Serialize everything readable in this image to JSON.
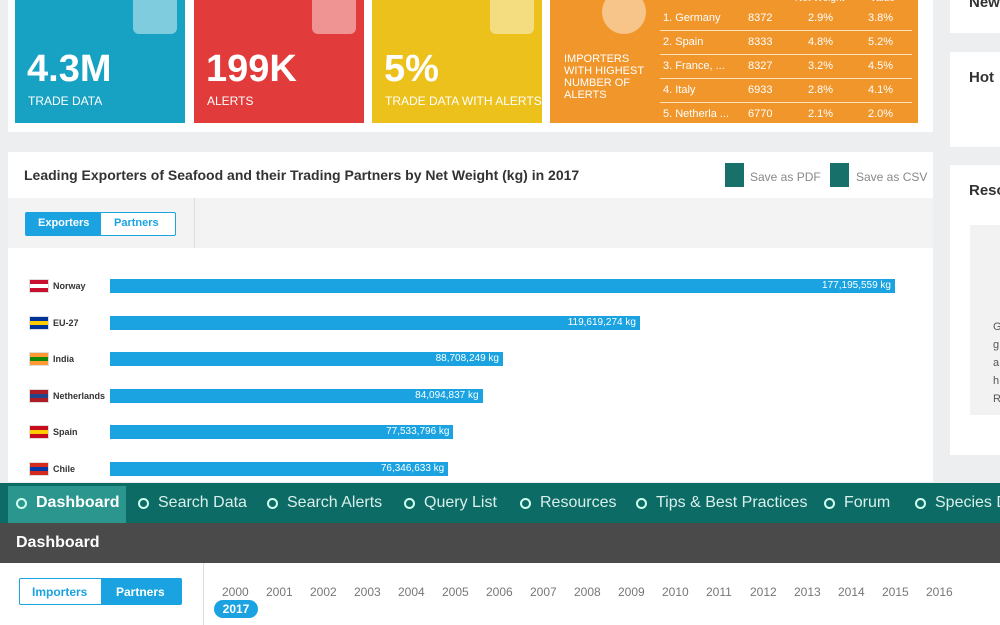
{
  "kpis": [
    {
      "value": "4.3M",
      "label": "TRADE DATA"
    },
    {
      "value": "199K",
      "label": "ALERTS"
    },
    {
      "value": "5%",
      "label": "TRADE DATA WITH ALERTS"
    },
    {
      "label": "IMPORTERS WITH HIGHEST NUMBER OF ALERTS"
    }
  ],
  "importers_table": {
    "headers": [
      "Net Weight",
      "Value"
    ],
    "rows": [
      [
        "1. Germany",
        "8372",
        "2.9%",
        "3.8%"
      ],
      [
        "2. Spain",
        "8333",
        "4.8%",
        "5.2%"
      ],
      [
        "3. France, ...",
        "8327",
        "3.2%",
        "4.5%"
      ],
      [
        "4. Italy",
        "6933",
        "2.8%",
        "4.1%"
      ],
      [
        "5. Netherla ...",
        "6770",
        "2.1%",
        "2.0%"
      ]
    ]
  },
  "chart_data": {
    "type": "bar",
    "orientation": "horizontal",
    "title": "Leading Exporters of Seafood and their Trading Partners by Net Weight (kg) in 2017",
    "categories": [
      "Norway",
      "EU-27",
      "India",
      "Netherlands",
      "Spain",
      "Chile"
    ],
    "values": [
      177195559,
      119619274,
      88708249,
      84094837,
      77533796,
      76346633
    ],
    "value_labels": [
      "177,195,559 kg",
      "119,619,274 kg",
      "88,708,249 kg",
      "84,094,837 kg",
      "77,533,796 kg",
      "76,346,633 kg"
    ],
    "color": "#1aa3e0"
  },
  "chart_actions": [
    "Save as PDF",
    "Save as CSV"
  ],
  "chart_toggle": [
    "Exporters",
    "Partners"
  ],
  "nav": [
    "Dashboard",
    "Search Data",
    "Search Alerts",
    "Query List",
    "Resources",
    "Tips & Best Practices",
    "Forum",
    "Species D"
  ],
  "page_title": "Dashboard",
  "filter_toggle": [
    "Importers",
    "Partners"
  ],
  "years": [
    "2000",
    "2001",
    "2002",
    "2003",
    "2004",
    "2005",
    "2006",
    "2007",
    "2008",
    "2009",
    "2010",
    "2011",
    "2012",
    "2013",
    "2014",
    "2015",
    "2016"
  ],
  "selected_year": "2017",
  "side_panels": [
    "New",
    "Hot",
    "Reso"
  ],
  "side_text": [
    "G",
    "g",
    "a",
    "h",
    "R"
  ]
}
